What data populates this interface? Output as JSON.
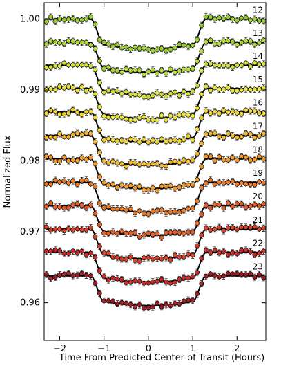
{
  "chart_data": {
    "type": "scatter",
    "title": "",
    "xlabel": "Time From Predicted Center of Transit (Hours)",
    "ylabel": "Normalized Flux",
    "xlim": [
      -2.35,
      2.65
    ],
    "ylim": [
      0.9547,
      1.0023
    ],
    "xticks": [
      -2,
      -1,
      0,
      1,
      2
    ],
    "yticks": [
      0.96,
      0.97,
      0.98,
      0.99,
      1.0
    ],
    "xtick_labels": [
      "−2",
      "−1",
      "0",
      "1",
      "2"
    ],
    "ytick_labels": [
      "0.96",
      "0.97",
      "0.98",
      "0.99",
      "1.00"
    ],
    "grid": false,
    "transit": {
      "ingress_start": -1.3,
      "ingress_end": -1.0,
      "egress_start": 1.0,
      "egress_end": 1.3,
      "depth": 0.0042,
      "x_start": -2.3,
      "x_end": 2.6,
      "samples": 50
    },
    "series": [
      {
        "name": "12",
        "baseline": 1.0,
        "color": "#9acd32"
      },
      {
        "name": "13",
        "baseline": 0.9967,
        "color": "#b3d93a"
      },
      {
        "name": "14",
        "baseline": 0.9935,
        "color": "#d4e03f"
      },
      {
        "name": "15",
        "baseline": 0.9902,
        "color": "#e5e33c"
      },
      {
        "name": "16",
        "baseline": 0.9869,
        "color": "#f0d435"
      },
      {
        "name": "17",
        "baseline": 0.9836,
        "color": "#f4b92e"
      },
      {
        "name": "18",
        "baseline": 0.9803,
        "color": "#f39a2a"
      },
      {
        "name": "19",
        "baseline": 0.977,
        "color": "#ee7d2a"
      },
      {
        "name": "20",
        "baseline": 0.9737,
        "color": "#e5602b"
      },
      {
        "name": "21",
        "baseline": 0.9704,
        "color": "#d8432c"
      },
      {
        "name": "22",
        "baseline": 0.9671,
        "color": "#c62d2b"
      },
      {
        "name": "23",
        "baseline": 0.9638,
        "color": "#9e1f25"
      }
    ]
  }
}
